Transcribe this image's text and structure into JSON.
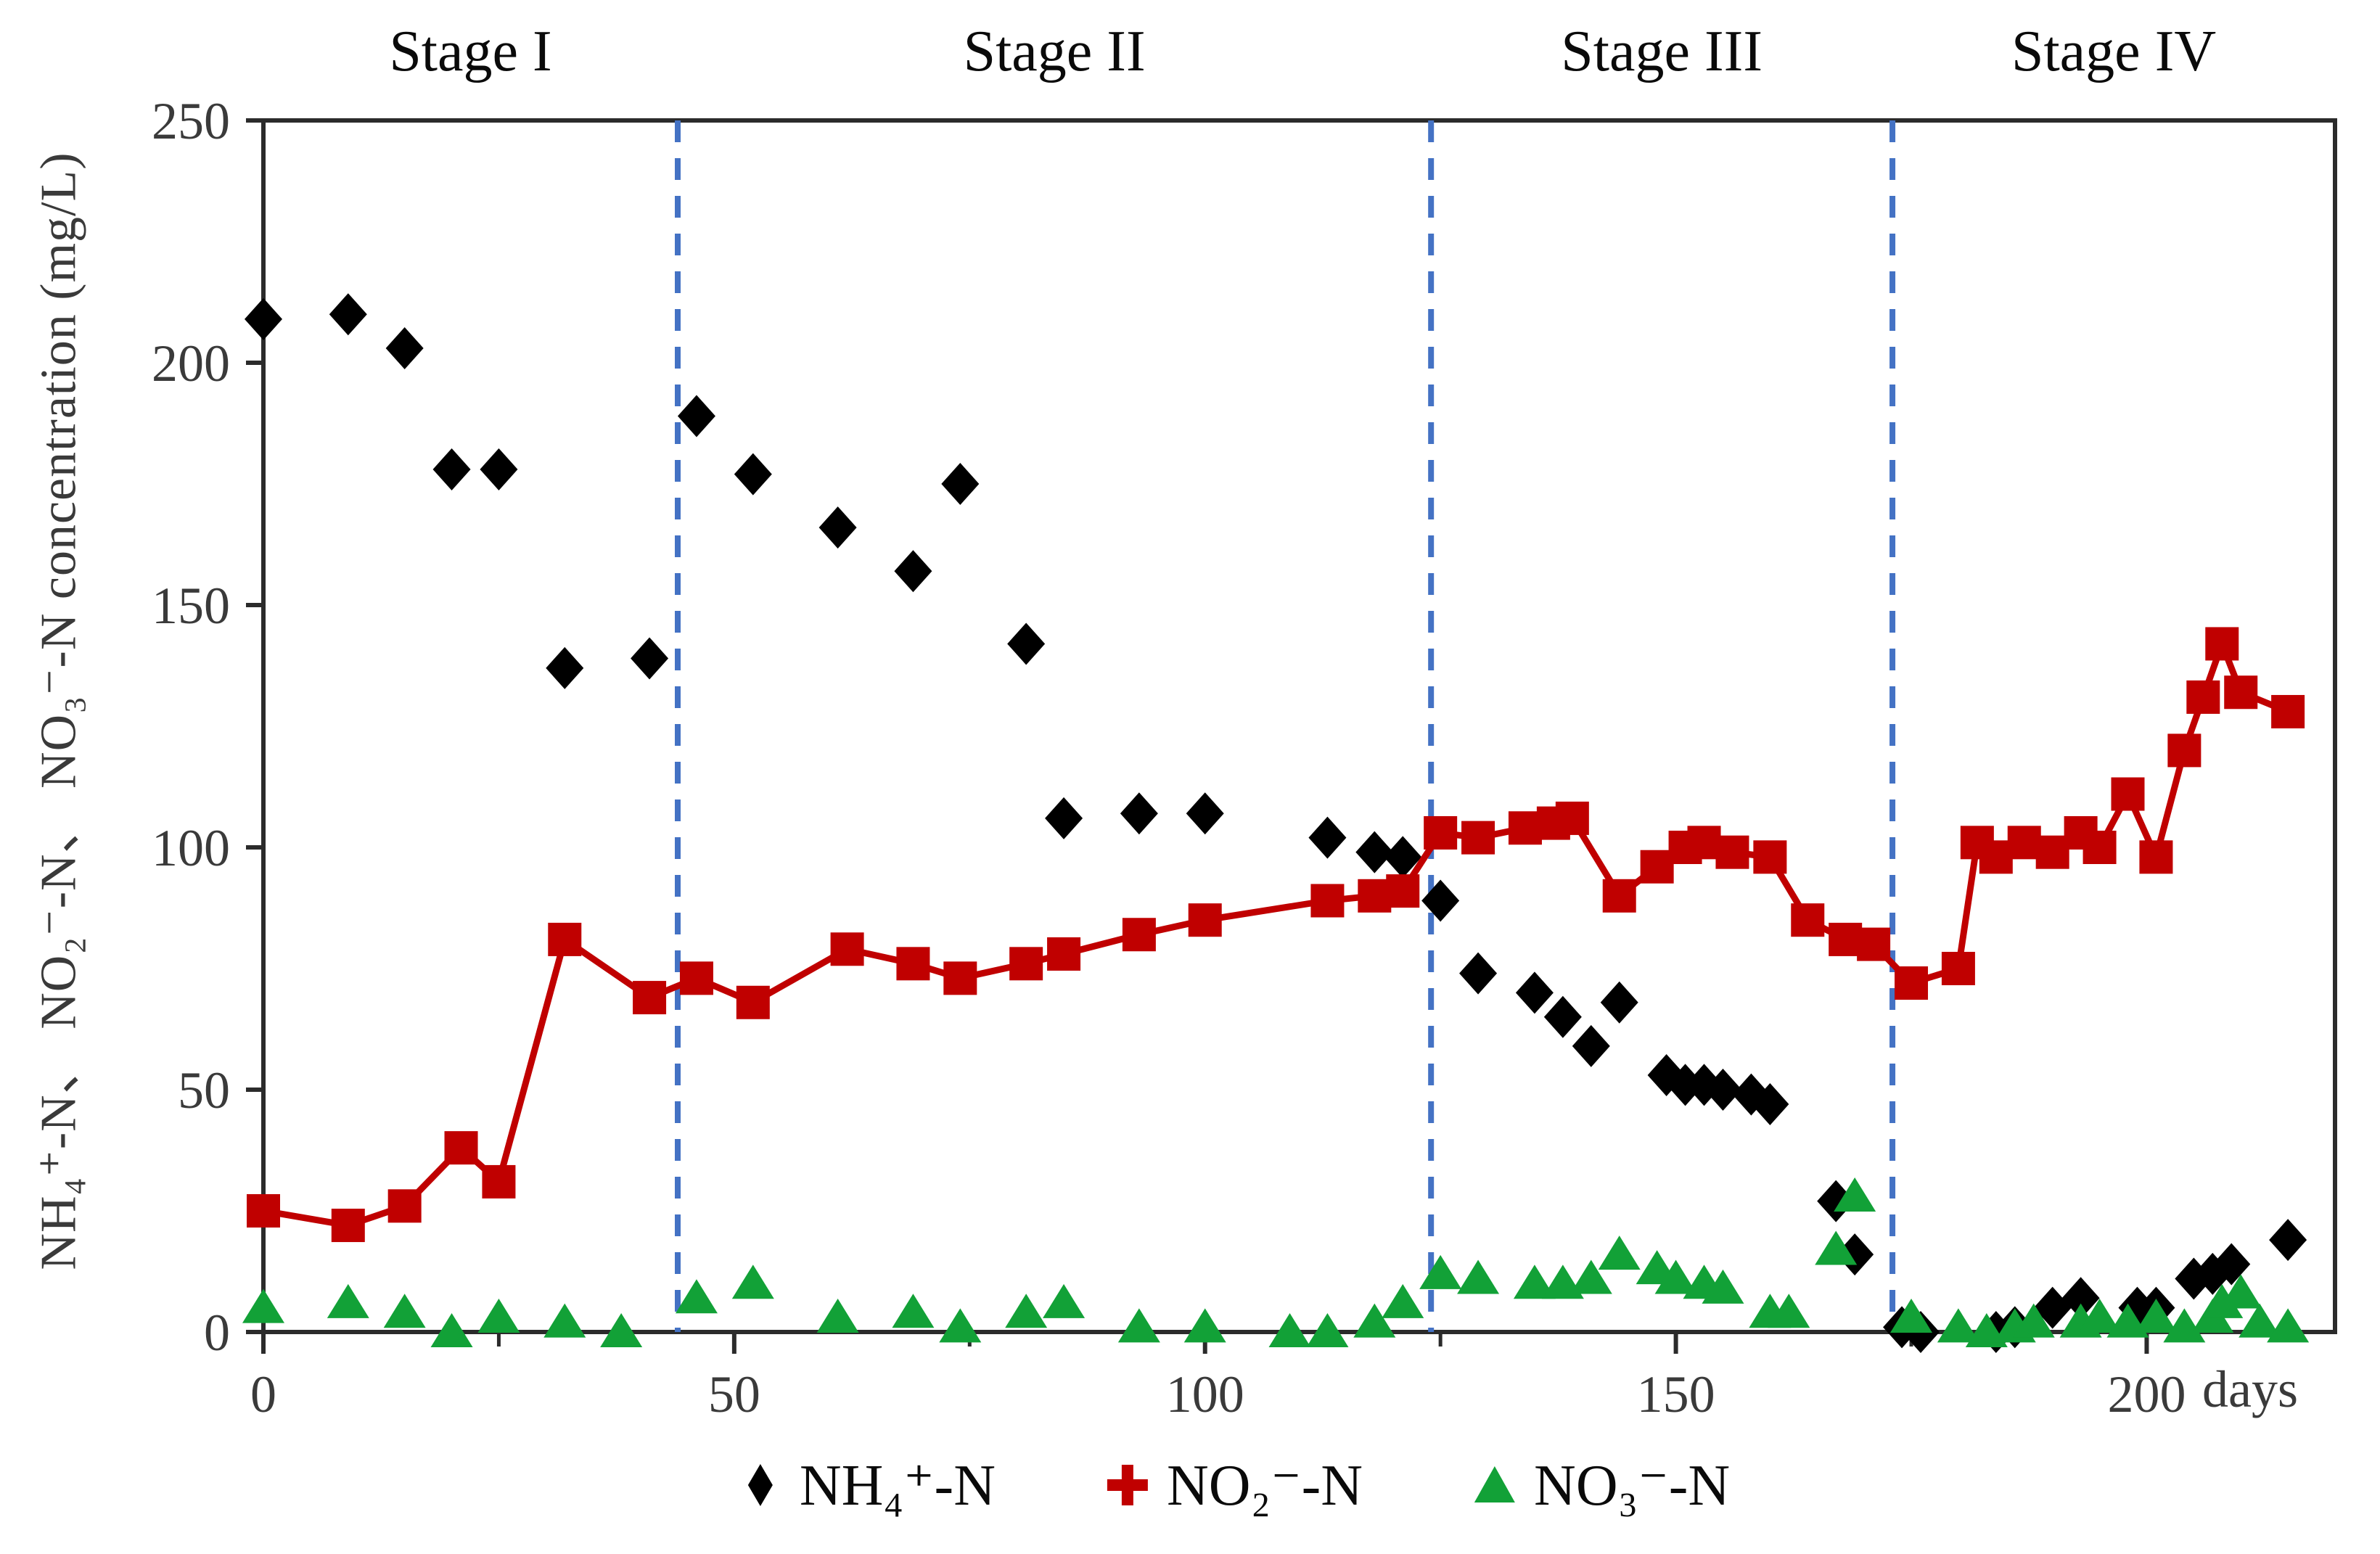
{
  "figure": {
    "kind": "scientific scatter/line chart of nitrogen species concentration over operating days",
    "background_color": "#ffffff",
    "frame_color": "#2b2b2b",
    "divider_style": "vertical dashed blue lines separating operating stages"
  },
  "chart_data": {
    "type": "scatter",
    "title": "",
    "xlabel": "days",
    "ylabel": "NH₄⁺-N、 NO₂⁻-N、 NO₃⁻-N concentration (mg/L)",
    "xlim": [
      0,
      220
    ],
    "ylim": [
      0,
      250
    ],
    "x_ticks_major": [
      0,
      50,
      100,
      150,
      200
    ],
    "x_ticks_minor": [
      25,
      75,
      125,
      175
    ],
    "y_ticks": [
      0,
      50,
      100,
      150,
      200,
      250
    ],
    "grid": false,
    "legend_position": "bottom-center",
    "divider_color": "#4472C4",
    "stage_dividers_days": [
      44,
      124,
      173
    ],
    "stages": [
      {
        "label": "Stage I",
        "from_day": 0,
        "to_day": 44
      },
      {
        "label": "Stage II",
        "from_day": 44,
        "to_day": 124
      },
      {
        "label": "Stage III",
        "from_day": 124,
        "to_day": 173
      },
      {
        "label": "Stage IV",
        "from_day": 173,
        "to_day": 220
      }
    ],
    "series": [
      {
        "name": "NH₄⁺-N",
        "marker": "diamond",
        "legend_marker": "diamond",
        "color": "#000000",
        "line": false,
        "points": [
          [
            0,
            209
          ],
          [
            9,
            210
          ],
          [
            15,
            203
          ],
          [
            20,
            178
          ],
          [
            25,
            178
          ],
          [
            32,
            137
          ],
          [
            41,
            139
          ],
          [
            46,
            189
          ],
          [
            52,
            177
          ],
          [
            61,
            166
          ],
          [
            69,
            157
          ],
          [
            74,
            175
          ],
          [
            81,
            142
          ],
          [
            85,
            106
          ],
          [
            93,
            107
          ],
          [
            100,
            107
          ],
          [
            113,
            102
          ],
          [
            118,
            99
          ],
          [
            121,
            98
          ],
          [
            125,
            89
          ],
          [
            129,
            74
          ],
          [
            135,
            70
          ],
          [
            138,
            65
          ],
          [
            141,
            59
          ],
          [
            144,
            68
          ],
          [
            149,
            53
          ],
          [
            151,
            51
          ],
          [
            153,
            51
          ],
          [
            155,
            50
          ],
          [
            158,
            49
          ],
          [
            160,
            47
          ],
          [
            167,
            27
          ],
          [
            169,
            16
          ],
          [
            174,
            1
          ],
          [
            176,
            0
          ],
          [
            184,
            0
          ],
          [
            186,
            1
          ],
          [
            190,
            5
          ],
          [
            193,
            7
          ],
          [
            199,
            5
          ],
          [
            201,
            5
          ],
          [
            205,
            11
          ],
          [
            207,
            12
          ],
          [
            209,
            14
          ],
          [
            215,
            19
          ]
        ]
      },
      {
        "name": "NO₂⁻-N",
        "marker": "square",
        "legend_marker": "plus",
        "color": "#C00000",
        "line": true,
        "line_width": 9,
        "points": [
          [
            0,
            25
          ],
          [
            9,
            22
          ],
          [
            15,
            26
          ],
          [
            21,
            38
          ],
          [
            25,
            31
          ],
          [
            32,
            81
          ],
          [
            41,
            69
          ],
          [
            46,
            73
          ],
          [
            52,
            68
          ],
          [
            62,
            79
          ],
          [
            69,
            76
          ],
          [
            74,
            73
          ],
          [
            81,
            76
          ],
          [
            85,
            78
          ],
          [
            93,
            82
          ],
          [
            100,
            85
          ],
          [
            113,
            89
          ],
          [
            118,
            90
          ],
          [
            121,
            91
          ],
          [
            125,
            103
          ],
          [
            129,
            102
          ],
          [
            134,
            104
          ],
          [
            137,
            105
          ],
          [
            139,
            106
          ],
          [
            144,
            90
          ],
          [
            148,
            96
          ],
          [
            151,
            100
          ],
          [
            153,
            101
          ],
          [
            156,
            99
          ],
          [
            160,
            98
          ],
          [
            164,
            85
          ],
          [
            168,
            81
          ],
          [
            171,
            80
          ],
          [
            175,
            72
          ],
          [
            180,
            75
          ],
          [
            182,
            101
          ],
          [
            184,
            98
          ],
          [
            187,
            101
          ],
          [
            190,
            99
          ],
          [
            193,
            103
          ],
          [
            195,
            100
          ],
          [
            198,
            111
          ],
          [
            201,
            98
          ],
          [
            204,
            120
          ],
          [
            206,
            131
          ],
          [
            208,
            142
          ],
          [
            210,
            132
          ],
          [
            215,
            128
          ]
        ]
      },
      {
        "name": "NO₃⁻-N",
        "marker": "triangle",
        "legend_marker": "triangle",
        "color": "#12A137",
        "line": false,
        "points": [
          [
            0,
            5
          ],
          [
            9,
            6
          ],
          [
            15,
            4
          ],
          [
            20,
            0
          ],
          [
            25,
            3
          ],
          [
            32,
            2
          ],
          [
            38,
            0
          ],
          [
            46,
            7
          ],
          [
            52,
            10
          ],
          [
            61,
            3
          ],
          [
            69,
            4
          ],
          [
            74,
            1
          ],
          [
            81,
            4
          ],
          [
            85,
            6
          ],
          [
            93,
            1
          ],
          [
            100,
            1
          ],
          [
            109,
            0
          ],
          [
            113,
            0
          ],
          [
            118,
            2
          ],
          [
            121,
            6
          ],
          [
            125,
            12
          ],
          [
            129,
            11
          ],
          [
            135,
            10
          ],
          [
            138,
            10
          ],
          [
            141,
            11
          ],
          [
            144,
            16
          ],
          [
            148,
            13
          ],
          [
            150,
            11
          ],
          [
            153,
            10
          ],
          [
            155,
            9
          ],
          [
            160,
            4
          ],
          [
            162,
            4
          ],
          [
            167,
            17
          ],
          [
            169,
            28
          ],
          [
            175,
            3
          ],
          [
            180,
            1
          ],
          [
            183,
            0
          ],
          [
            186,
            1
          ],
          [
            188,
            2
          ],
          [
            193,
            2
          ],
          [
            195,
            3
          ],
          [
            198,
            2
          ],
          [
            201,
            3
          ],
          [
            204,
            1
          ],
          [
            207,
            3
          ],
          [
            208,
            6
          ],
          [
            210,
            8
          ],
          [
            212,
            2
          ],
          [
            215,
            1
          ]
        ]
      }
    ]
  }
}
